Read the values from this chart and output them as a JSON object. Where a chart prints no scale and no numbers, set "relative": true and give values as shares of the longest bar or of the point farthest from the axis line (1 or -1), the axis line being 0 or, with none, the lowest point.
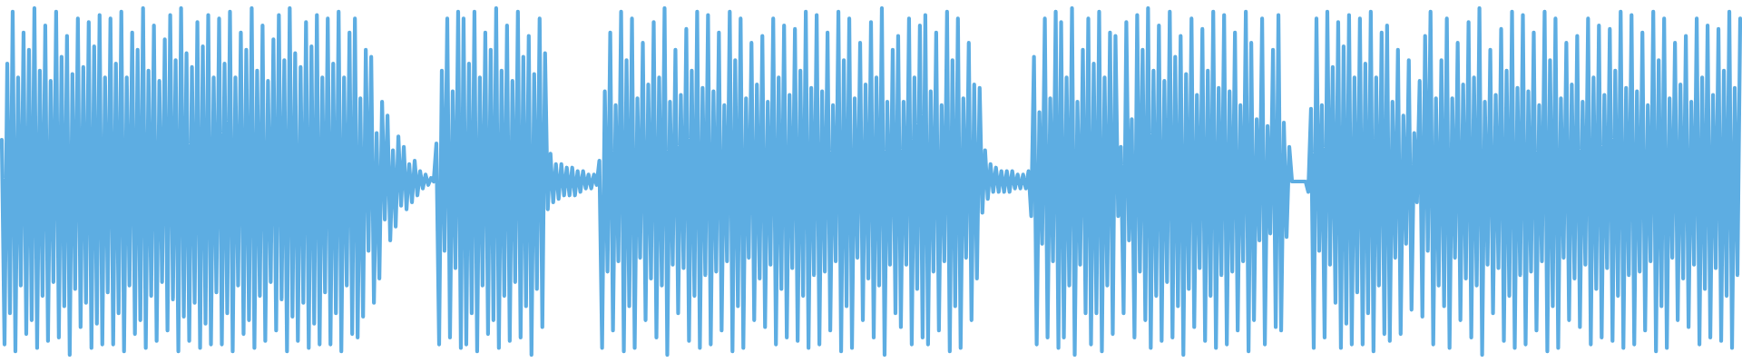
{
  "chart_data": {
    "type": "line",
    "relative": true,
    "tick_labels": false,
    "categories": [
      null,
      null,
      null,
      null,
      null,
      null,
      null,
      null,
      null,
      null,
      null,
      null,
      null,
      null,
      null,
      null,
      null,
      null,
      null,
      null,
      null,
      null,
      null,
      null,
      null,
      null,
      null,
      null,
      null,
      null,
      null,
      null,
      null,
      null,
      null,
      null,
      null,
      null,
      null,
      null,
      null,
      null,
      null,
      null,
      null,
      null,
      null,
      null,
      null,
      null,
      null,
      null,
      null,
      null,
      null,
      null,
      null,
      null,
      null,
      null,
      null,
      null,
      null,
      null,
      null,
      null,
      null,
      null,
      null,
      null,
      null,
      null,
      null,
      null,
      null,
      null,
      null,
      null,
      null,
      null,
      null,
      null,
      null,
      null,
      null,
      null,
      null,
      null,
      null,
      null,
      null,
      null,
      null,
      null,
      null,
      null,
      null,
      null,
      null,
      null,
      null,
      null,
      null,
      null,
      null,
      null,
      null,
      null,
      null,
      null,
      null,
      null,
      null,
      null,
      null,
      null,
      null,
      null,
      null,
      null,
      null,
      null,
      null,
      null,
      null,
      null,
      null,
      null,
      null,
      null,
      null,
      null,
      null,
      null,
      null,
      null,
      null,
      null,
      null,
      null,
      null,
      null,
      null,
      null,
      null,
      null,
      null,
      null,
      null,
      null,
      null,
      null,
      null,
      null,
      null,
      null,
      null,
      null,
      null,
      null,
      null,
      null,
      null,
      null,
      null,
      null,
      null,
      null,
      null,
      null,
      null,
      null,
      null,
      null,
      null,
      null,
      null,
      null,
      null,
      null,
      null,
      null,
      null,
      null,
      null,
      null,
      null,
      null,
      null,
      null,
      null,
      null,
      null,
      null,
      null,
      null,
      null,
      null,
      null,
      null,
      null,
      null,
      null,
      null,
      null,
      null,
      null,
      null,
      null,
      null,
      null,
      null,
      null,
      null,
      null,
      null,
      null,
      null,
      null,
      null,
      null,
      null,
      null,
      null,
      null,
      null,
      null,
      null,
      null,
      null,
      null,
      null,
      null,
      null,
      null,
      null,
      null,
      null,
      null,
      null,
      null,
      null,
      null,
      null,
      null,
      null,
      null,
      null,
      null,
      null,
      null,
      null,
      null,
      null,
      null,
      null,
      null,
      null,
      null,
      null,
      null,
      null,
      null,
      null,
      null,
      null,
      null,
      null,
      null,
      null,
      null,
      null,
      null,
      null,
      null,
      null,
      null,
      null,
      null,
      null,
      null,
      null,
      null,
      null,
      null,
      null,
      null,
      null,
      null,
      null,
      null,
      null,
      null,
      null,
      null,
      null,
      null,
      null,
      null,
      null,
      null,
      null,
      null,
      null,
      null,
      null,
      null,
      null,
      null,
      null,
      null,
      null,
      null,
      null,
      null,
      null,
      null,
      null,
      null,
      null,
      null,
      null,
      null,
      null,
      null,
      null,
      null,
      null,
      null,
      null,
      null,
      null,
      null,
      null,
      null,
      null,
      null,
      null,
      null,
      null,
      null,
      null,
      null,
      null,
      null,
      null,
      null,
      null,
      null,
      null,
      null,
      null,
      null,
      null,
      null,
      null,
      null,
      null,
      null,
      null,
      null,
      null,
      null,
      null,
      null,
      null,
      null,
      null,
      null,
      null,
      null,
      null,
      null,
      null,
      null,
      null,
      null,
      null,
      null,
      null,
      null,
      null,
      null,
      null,
      null,
      null,
      null,
      null,
      null,
      null,
      null,
      null,
      null,
      null,
      null,
      null,
      null,
      null,
      null,
      null,
      null,
      null,
      null,
      null,
      null,
      null,
      null,
      null,
      null,
      null,
      null,
      null,
      null,
      null,
      null,
      null,
      null,
      null,
      null,
      null,
      null,
      null,
      null,
      null,
      null,
      null,
      null,
      null,
      null,
      null,
      null,
      null,
      null,
      null,
      null,
      null,
      null,
      null,
      null,
      null,
      null,
      null,
      null,
      null,
      null,
      null,
      null,
      null,
      null,
      null,
      null,
      null,
      null,
      null,
      null,
      null,
      null,
      null,
      null,
      null,
      null,
      null,
      null,
      null,
      null,
      null,
      null,
      null,
      null,
      null,
      null,
      null,
      null,
      null,
      null,
      null,
      null,
      null,
      null,
      null,
      null,
      null,
      null,
      null,
      null,
      null,
      null,
      null,
      null,
      null,
      null,
      null,
      null,
      null,
      null,
      null,
      null,
      null,
      null,
      null,
      null,
      null,
      null,
      null,
      null,
      null,
      null,
      null,
      null,
      null,
      null,
      null,
      null,
      null,
      null,
      null,
      null,
      null,
      null,
      null,
      null,
      null,
      null,
      null,
      null,
      null,
      null,
      null,
      null,
      null,
      null,
      null,
      null,
      null,
      null,
      null,
      null,
      null,
      null,
      null,
      null,
      null,
      null,
      null,
      null,
      null,
      null,
      null,
      null,
      null,
      null,
      null,
      null,
      null,
      null,
      null,
      null,
      null,
      null,
      null,
      null,
      null,
      null,
      null,
      null,
      null,
      null,
      null,
      null,
      null,
      null,
      null,
      null,
      null,
      null,
      null,
      null,
      null,
      null,
      null,
      null,
      null,
      null,
      null,
      null,
      null,
      null,
      null,
      null,
      null,
      null,
      null,
      null,
      null,
      null,
      null,
      null,
      null,
      null,
      null,
      null,
      null,
      null,
      null,
      null,
      null,
      null,
      null,
      null,
      null,
      null,
      null,
      null,
      null,
      null,
      null,
      null,
      null,
      null,
      null,
      null,
      null,
      null,
      null,
      null,
      null,
      null,
      null,
      null,
      null,
      null,
      null,
      null,
      null,
      null,
      null,
      null,
      null,
      null,
      null,
      null
    ],
    "series": [
      {
        "color": "#5dade2",
        "values": [
          0.62,
          0.03,
          0.84,
          0.12,
          0.99,
          0.01,
          0.8,
          0.2,
          0.93,
          0.06,
          0.88,
          0.1,
          1,
          0.02,
          0.82,
          0.17,
          0.95,
          0.04,
          0.79,
          0.21,
          0.99,
          0.05,
          0.86,
          0.14,
          0.92,
          0,
          0.81,
          0.19,
          0.97,
          0.08,
          0.83,
          0.15,
          0.96,
          0.02,
          0.89,
          0.09,
          0.98,
          0.03,
          0.8,
          0.18,
          0.97,
          0.03,
          0.84,
          0.12,
          0.99,
          0.01,
          0.8,
          0.2,
          0.93,
          0.06,
          0.88,
          0.1,
          1,
          0.02,
          0.82,
          0.17,
          0.95,
          0.04,
          0.79,
          0.21,
          0.91,
          0.07,
          0.98,
          0.16,
          0.85,
          0.01,
          1,
          0.11,
          0.87,
          0.04,
          0.83,
          0.15,
          0.96,
          0.02,
          0.89,
          0.09,
          0.98,
          0.03,
          0.8,
          0.18,
          0.97,
          0.03,
          0.84,
          0.12,
          0.99,
          0.01,
          0.8,
          0.2,
          0.93,
          0.06,
          0.88,
          0.1,
          1,
          0.02,
          0.82,
          0.17,
          0.95,
          0.04,
          0.79,
          0.21,
          0.91,
          0.07,
          0.98,
          0.16,
          0.85,
          0.01,
          1,
          0.11,
          0.87,
          0.04,
          0.83,
          0.15,
          0.96,
          0.02,
          0.89,
          0.09,
          0.98,
          0.03,
          0.8,
          0.18,
          0.97,
          0.03,
          0.84,
          0.12,
          0.99,
          0.01,
          0.8,
          0.2,
          0.93,
          0.06,
          0.97,
          0.05,
          0.74,
          0.11,
          0.88,
          0.3,
          0.86,
          0.15,
          0.64,
          0.22,
          0.73,
          0.39,
          0.69,
          0.33,
          0.59,
          0.37,
          0.63,
          0.43,
          0.6,
          0.42,
          0.55,
          0.44,
          0.56,
          0.46,
          0.53,
          0.48,
          0.52,
          0.49,
          0.51,
          0.5,
          0.61,
          0.03,
          0.82,
          0.3,
          0.97,
          0.05,
          0.76,
          0.25,
          0.99,
          0.02,
          0.97,
          0.03,
          0.84,
          0.12,
          0.99,
          0.01,
          0.8,
          0.2,
          0.93,
          0.06,
          0.88,
          0.1,
          1,
          0.02,
          0.82,
          0.17,
          0.95,
          0.04,
          0.79,
          0.21,
          0.99,
          0.05,
          0.86,
          0.14,
          0.92,
          0,
          0.81,
          0.19,
          0.97,
          0.08,
          0.87,
          0.42,
          0.58,
          0.44,
          0.55,
          0.45,
          0.55,
          0.46,
          0.54,
          0.46,
          0.54,
          0.46,
          0.53,
          0.47,
          0.53,
          0.48,
          0.52,
          0.48,
          0.52,
          0.49,
          0.56,
          0.02,
          0.76,
          0.24,
          0.93,
          0.07,
          0.72,
          0.27,
          0.99,
          0.01,
          0.85,
          0.14,
          0.97,
          0.02,
          0.74,
          0.28,
          0.9,
          0.1,
          0.78,
          0.22,
          0.96,
          0.05,
          0.8,
          0.2,
          1,
          0,
          0.73,
          0.26,
          0.88,
          0.12,
          0.75,
          0.25,
          0.94,
          0.04,
          0.82,
          0.17,
          0.99,
          0.02,
          0.77,
          0.23,
          0.98,
          0.03,
          0.76,
          0.24,
          0.93,
          0.07,
          0.72,
          0.27,
          0.99,
          0.01,
          0.85,
          0.14,
          0.97,
          0.02,
          0.74,
          0.28,
          0.9,
          0.1,
          0.78,
          0.22,
          0.92,
          0.08,
          0.73,
          0.26,
          0.97,
          0.03,
          0.8,
          0.19,
          0.95,
          0.05,
          0.75,
          0.25,
          0.94,
          0.04,
          0.82,
          0.17,
          0.99,
          0.02,
          0.77,
          0.23,
          0.98,
          0.03,
          0.76,
          0.24,
          0.93,
          0.07,
          0.72,
          0.27,
          0.99,
          0.01,
          0.85,
          0.14,
          0.97,
          0.02,
          0.74,
          0.28,
          0.9,
          0.1,
          0.78,
          0.22,
          0.96,
          0.05,
          0.8,
          0.2,
          1,
          0,
          0.73,
          0.26,
          0.88,
          0.12,
          0.92,
          0.08,
          0.73,
          0.26,
          0.97,
          0.03,
          0.8,
          0.19,
          0.95,
          0.05,
          0.98,
          0.03,
          0.76,
          0.24,
          0.93,
          0.07,
          0.72,
          0.27,
          0.99,
          0.01,
          0.85,
          0.14,
          0.97,
          0.02,
          0.74,
          0.28,
          0.9,
          0.1,
          0.78,
          0.22,
          0.77,
          0.41,
          0.59,
          0.45,
          0.55,
          0.47,
          0.54,
          0.47,
          0.53,
          0.47,
          0.53,
          0.47,
          0.53,
          0.48,
          0.52,
          0.48,
          0.52,
          0.48,
          0.53,
          0.4,
          0.86,
          0.03,
          0.7,
          0.32,
          0.97,
          0.05,
          0.74,
          0.27,
          0.99,
          0.02,
          0.96,
          0.05,
          0.8,
          0.2,
          1,
          0,
          0.73,
          0.26,
          0.88,
          0.12,
          0.97,
          0.03,
          0.84,
          0.12,
          0.99,
          0.01,
          0.8,
          0.2,
          0.93,
          0.06,
          0.92,
          0.4,
          0.6,
          0.12,
          0.96,
          0.33,
          0.68,
          0.05,
          0.98,
          0.24,
          0.88,
          0.1,
          1,
          0.02,
          0.82,
          0.17,
          0.95,
          0.04,
          0.79,
          0.21,
          0.99,
          0.05,
          0.86,
          0.14,
          0.92,
          0,
          0.81,
          0.19,
          0.97,
          0.08,
          0.75,
          0.25,
          0.94,
          0.04,
          0.82,
          0.17,
          0.99,
          0.02,
          0.77,
          0.23,
          0.98,
          0.03,
          0.76,
          0.24,
          0.93,
          0.07,
          0.72,
          0.27,
          0.99,
          0.01,
          0.9,
          0.1,
          0.68,
          0.33,
          0.97,
          0.03,
          0.66,
          0.35,
          0.88,
          0.08,
          0.98,
          0.07,
          0.67,
          0.34,
          0.6,
          0.5,
          0.5,
          0.5,
          0.5,
          0.5,
          0.5,
          0.47,
          0.71,
          0.02,
          0.97,
          0.3,
          0.72,
          0.05,
          0.99,
          0.26,
          0.83,
          0.15,
          0.96,
          0.02,
          0.89,
          0.09,
          0.98,
          0.03,
          0.8,
          0.18,
          0.97,
          0.03,
          0.84,
          0.12,
          0.99,
          0.01,
          0.8,
          0.2,
          0.93,
          0.06,
          0.95,
          0.04,
          0.73,
          0.28,
          0.88,
          0.06,
          0.69,
          0.32,
          0.85,
          0.13,
          0.64,
          0.44,
          0.79,
          0.11,
          0.92,
          0.3,
          0.99,
          0.03,
          0.74,
          0.2,
          0.85,
          0.14,
          0.97,
          0.02,
          0.74,
          0.28,
          0.9,
          0.1,
          0.78,
          0.22,
          0.96,
          0.05,
          0.8,
          0.2,
          1,
          0,
          0.73,
          0.26,
          0.88,
          0.12,
          0.75,
          0.25,
          0.94,
          0.04,
          0.82,
          0.17,
          0.99,
          0.02,
          0.77,
          0.23,
          0.98,
          0.03,
          0.76,
          0.24,
          0.93,
          0.07,
          0.72,
          0.27,
          0.99,
          0.01,
          0.85,
          0.14,
          0.97,
          0.02,
          0.74,
          0.28,
          0.9,
          0.1,
          0.78,
          0.22,
          0.92,
          0.08,
          0.73,
          0.26,
          0.97,
          0.03,
          0.8,
          0.19,
          0.95,
          0.05,
          0.75,
          0.25,
          0.94,
          0.04,
          0.82,
          0.17,
          0.99,
          0.02,
          0.77,
          0.23,
          0.98,
          0.03,
          0.76,
          0.24,
          0.93,
          0.07,
          0.72,
          0.27,
          0.99,
          0.01,
          0.85,
          0.14,
          0.97,
          0.02,
          0.74,
          0.28,
          0.9,
          0.1,
          0.78,
          0.22,
          0.92,
          0.08,
          0.73,
          0.26,
          0.97,
          0.03,
          0.8,
          0.19,
          0.95,
          0.05,
          0.75,
          0.25,
          0.94,
          0.04,
          0.82,
          0.17,
          0.99,
          0.02,
          0.77,
          0.23,
          0.97
        ]
      }
    ]
  }
}
